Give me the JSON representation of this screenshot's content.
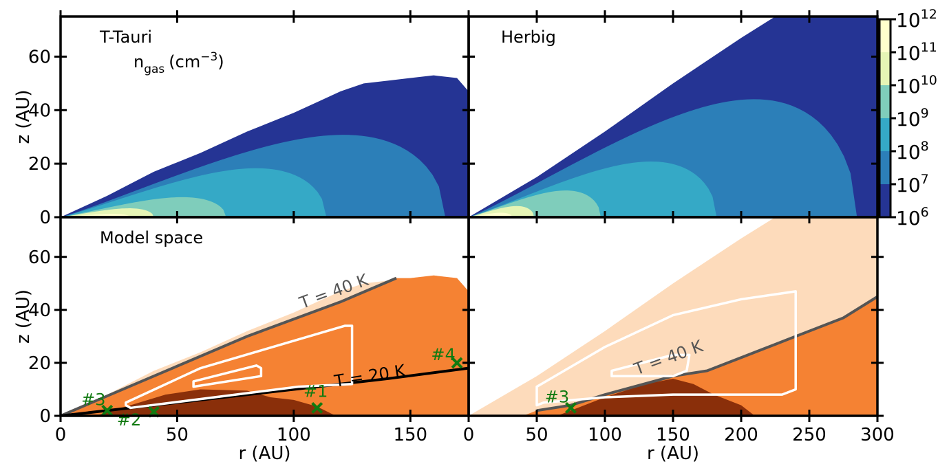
{
  "chart_data": [
    {
      "type": "contour",
      "panel": "top-left",
      "label": "T-Tauri",
      "colorbar_label": "n",
      "colorbar_label_sub": "gas",
      "colorbar_label_unit": "(cm",
      "colorbar_label_unit_exp": "−3",
      "colorbar_label_close": ")",
      "xlim": [
        0,
        175
      ],
      "ylim": [
        0,
        75
      ],
      "x_ticks": [
        0,
        50,
        100,
        150
      ],
      "y_ticks": [
        0,
        20,
        40,
        60
      ],
      "y_tick_labels": [
        "0",
        "20",
        "40",
        "60"
      ],
      "ylabel": "z (AU)",
      "disk_outer_radius": 175,
      "surface_profile": [
        [
          0,
          0
        ],
        [
          20,
          8
        ],
        [
          40,
          17
        ],
        [
          60,
          24
        ],
        [
          80,
          32
        ],
        [
          100,
          39
        ],
        [
          110,
          43
        ],
        [
          120,
          47
        ],
        [
          130,
          50
        ],
        [
          140,
          51
        ],
        [
          150,
          52
        ],
        [
          160,
          53
        ],
        [
          170,
          52
        ],
        [
          175,
          47
        ]
      ],
      "levels": [
        {
          "min_log_density": 6,
          "x_extent": 175,
          "z_extent": 54,
          "color": "#253494"
        },
        {
          "min_log_density": 7,
          "x_extent": 165,
          "z_extent": 37,
          "color": "#2c7fb8"
        },
        {
          "min_log_density": 8,
          "x_extent": 114,
          "z_extent": 22,
          "color": "#35a9c6"
        },
        {
          "min_log_density": 9,
          "x_extent": 71,
          "z_extent": 9,
          "color": "#7fcdbb"
        },
        {
          "min_log_density": 10,
          "x_extent": 40,
          "z_extent": 4,
          "color": "#e6f5b5"
        },
        {
          "min_log_density": 11,
          "x_extent": 30,
          "z_extent": 1.5,
          "color": "#ffffcc"
        }
      ]
    },
    {
      "type": "contour",
      "panel": "top-right",
      "label": "Herbig",
      "xlim": [
        0,
        300
      ],
      "ylim": [
        0,
        75
      ],
      "x_ticks": [
        0,
        50,
        100,
        150,
        200,
        250,
        300
      ],
      "y_ticks": [
        0,
        20,
        40,
        60
      ],
      "disk_outer_radius": 300,
      "surface_profile": [
        [
          0,
          0
        ],
        [
          50,
          15
        ],
        [
          100,
          32
        ],
        [
          150,
          50
        ],
        [
          200,
          67
        ],
        [
          225,
          75
        ],
        [
          300,
          75
        ]
      ],
      "levels": [
        {
          "min_log_density": 6,
          "x_extent": 300,
          "z_extent": 75,
          "color": "#253494"
        },
        {
          "min_log_density": 7,
          "x_extent": 285,
          "z_extent": 53,
          "color": "#2c7fb8"
        },
        {
          "min_log_density": 8,
          "x_extent": 182,
          "z_extent": 25,
          "color": "#35a9c6"
        },
        {
          "min_log_density": 9,
          "x_extent": 97,
          "z_extent": 12,
          "color": "#7fcdbb"
        },
        {
          "min_log_density": 10,
          "x_extent": 48,
          "z_extent": 5,
          "color": "#e6f5b5"
        },
        {
          "min_log_density": 11,
          "x_extent": 32,
          "z_extent": 2,
          "color": "#ffffcc"
        }
      ]
    },
    {
      "type": "contour",
      "panel": "bottom-left",
      "label": "Model space",
      "xlim": [
        0,
        175
      ],
      "ylim": [
        0,
        75
      ],
      "x_ticks": [
        0,
        50,
        100,
        150
      ],
      "x_tick_labels": [
        "0",
        "50",
        "100",
        "150"
      ],
      "y_ticks": [
        0,
        20,
        40,
        60
      ],
      "y_tick_labels": [
        "0",
        "20",
        "40",
        "60"
      ],
      "xlabel": "r (AU)",
      "ylabel": "z (AU)",
      "temperature_lines": [
        {
          "label": "T = 40 K",
          "color": "#555555",
          "points": [
            [
              0,
              0
            ],
            [
              40,
              15
            ],
            [
              80,
              30
            ],
            [
              120,
              43
            ],
            [
              144,
              52
            ]
          ]
        },
        {
          "label": "T = 20 K",
          "color": "#000000",
          "points": [
            [
              0,
              0
            ],
            [
              30,
              3
            ],
            [
              60,
              6
            ],
            [
              100,
              10
            ],
            [
              140,
              14
            ],
            [
              175,
              18
            ]
          ]
        }
      ],
      "model_space_contours": [
        {
          "points": [
            [
              28,
              4
            ],
            [
              28,
              5
            ],
            [
              60,
              18
            ],
            [
              122,
              34
            ],
            [
              125,
              34
            ],
            [
              125,
              12
            ],
            [
              102,
              11
            ],
            [
              30,
              3
            ]
          ]
        },
        {
          "points": [
            [
              57,
              11
            ],
            [
              57,
              13
            ],
            [
              84,
              19
            ],
            [
              86,
              18
            ],
            [
              86,
              15
            ]
          ]
        }
      ],
      "markers": [
        {
          "label": "#1",
          "x": 110,
          "z": 3
        },
        {
          "label": "#2",
          "x": 40,
          "z": 1.5
        },
        {
          "label": "#3",
          "x": 20,
          "z": 2
        },
        {
          "label": "#4",
          "x": 170,
          "z": 20
        }
      ]
    },
    {
      "type": "contour",
      "panel": "bottom-right",
      "xlim": [
        0,
        300
      ],
      "ylim": [
        0,
        75
      ],
      "x_ticks": [
        0,
        50,
        100,
        150,
        200,
        250,
        300
      ],
      "x_tick_labels": [
        "0",
        "50",
        "100",
        "150",
        "200",
        "250",
        "300"
      ],
      "y_ticks": [
        0,
        20,
        40,
        60
      ],
      "xlabel": "r (AU)",
      "temperature_lines": [
        {
          "label": "T = 40 K",
          "color": "#555555",
          "points": [
            [
              50,
              2
            ],
            [
              75,
              4
            ],
            [
              100,
              8
            ],
            [
              150,
              15
            ],
            [
              175,
              17
            ],
            [
              200,
              22
            ],
            [
              225,
              27
            ],
            [
              250,
              32
            ],
            [
              275,
              37
            ],
            [
              300,
              45
            ]
          ]
        }
      ],
      "model_space_contours": [
        {
          "points": [
            [
              50,
              4
            ],
            [
              50,
              11
            ],
            [
              100,
              26
            ],
            [
              150,
              38
            ],
            [
              200,
              44
            ],
            [
              240,
              47
            ],
            [
              240,
              10
            ],
            [
              230,
              8
            ],
            [
              150,
              8
            ],
            [
              100,
              7
            ],
            [
              55,
              5
            ]
          ]
        },
        {
          "points": [
            [
              105,
              15
            ],
            [
              105,
              17
            ],
            [
              150,
              23
            ],
            [
              162,
              23
            ],
            [
              160,
              17
            ],
            [
              150,
              15
            ]
          ]
        }
      ],
      "markers": [
        {
          "label": "#3",
          "x": 75,
          "z": 3
        }
      ]
    }
  ],
  "colorbar": {
    "tick_bases": [
      "10",
      "10",
      "10",
      "10",
      "10",
      "10",
      "10"
    ],
    "tick_exponents": [
      "12",
      "11",
      "10",
      "9",
      "8",
      "7",
      "6"
    ],
    "colors": [
      "#ffffcc",
      "#e6f5b5",
      "#7fcdbb",
      "#35a9c6",
      "#2c7fb8",
      "#253494"
    ]
  },
  "colors": {
    "model_light": "#fddbbb",
    "model_mid": "#f58233",
    "model_dark": "#8a2f0a",
    "marker": "#117a11",
    "contour_outline": "#ffffff"
  }
}
